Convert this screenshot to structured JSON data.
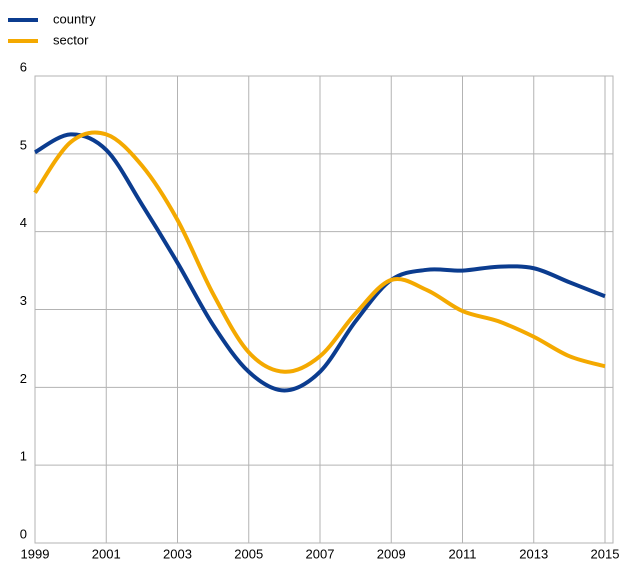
{
  "chart_data": {
    "type": "line",
    "x": [
      1999,
      2000,
      2001,
      2002,
      2003,
      2004,
      2005,
      2006,
      2007,
      2008,
      2009,
      2010,
      2011,
      2012,
      2013,
      2014,
      2015
    ],
    "series": [
      {
        "name": "country",
        "color": "#0b3c8f",
        "values": [
          5.02,
          5.25,
          5.05,
          4.35,
          3.6,
          2.8,
          2.2,
          1.96,
          2.2,
          2.85,
          3.38,
          3.51,
          3.5,
          3.55,
          3.53,
          3.35,
          3.17
        ]
      },
      {
        "name": "sector",
        "color": "#f4a900",
        "values": [
          4.5,
          5.15,
          5.25,
          4.85,
          4.15,
          3.2,
          2.45,
          2.2,
          2.4,
          2.95,
          3.38,
          3.25,
          2.98,
          2.85,
          2.65,
          2.4,
          2.27
        ]
      }
    ],
    "xlim": [
      1999,
      2015
    ],
    "xticks": [
      1999,
      2001,
      2003,
      2005,
      2007,
      2009,
      2011,
      2013,
      2015
    ],
    "ylim": [
      0,
      6
    ],
    "yticks": [
      0,
      1,
      2,
      3,
      4,
      5,
      6
    ],
    "grid": true,
    "legend": "top-left"
  }
}
